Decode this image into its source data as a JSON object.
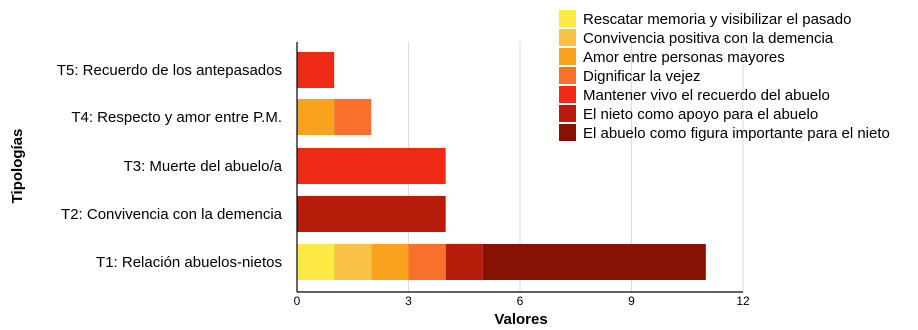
{
  "chart_data": {
    "type": "bar",
    "orientation": "horizontal",
    "stacked": true,
    "title": "",
    "xlabel": "Valores",
    "ylabel": "Tipologías",
    "xlim": [
      0,
      12
    ],
    "xticks": [
      0,
      3,
      6,
      9,
      12
    ],
    "grid": "vertical",
    "legend_position": "top-right",
    "categories": [
      "T1: Relación abuelos-nietos",
      "T2: Convivencia con la demencia",
      "T3: Muerte del abuelo/a",
      "T4: Respecto y amor entre P.M.",
      "T5: Recuerdo de los antepasados"
    ],
    "series": [
      {
        "name": "Rescatar memoria y visibilizar el pasado",
        "color": "#fdea45",
        "values": [
          1,
          0,
          0,
          0,
          0
        ]
      },
      {
        "name": "Convivencia positiva con la demencia",
        "color": "#f7c244",
        "values": [
          1,
          0,
          0,
          0,
          0
        ]
      },
      {
        "name": "Amor entre personas mayores",
        "color": "#f9a21e",
        "values": [
          1,
          0,
          0,
          1,
          0
        ]
      },
      {
        "name": "Dignificar la vejez",
        "color": "#f96f2c",
        "values": [
          1,
          0,
          0,
          1,
          0
        ]
      },
      {
        "name": "Mantener vivo el recuerdo del abuelo",
        "color": "#ee2a16",
        "values": [
          0,
          0,
          4,
          0,
          1
        ]
      },
      {
        "name": "El nieto como apoyo para el abuelo",
        "color": "#b71c0b",
        "values": [
          1,
          4,
          0,
          0,
          0
        ]
      },
      {
        "name": "El abuelo como figura importante para el nieto",
        "color": "#871103",
        "values": [
          6,
          0,
          0,
          0,
          0
        ]
      }
    ]
  }
}
